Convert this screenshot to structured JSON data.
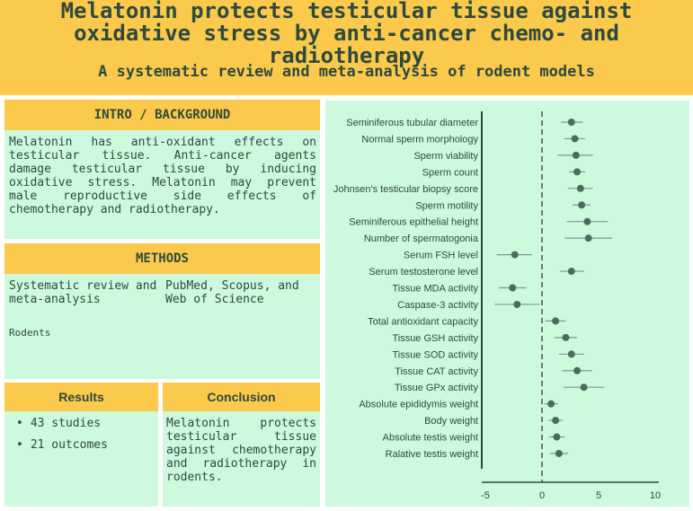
{
  "header": {
    "title": "Melatonin protects testicular tissue against oxidative stress by anti-cancer chemo- and radiotherapy",
    "subtitle": "A systematic review and meta-analysis of rodent models"
  },
  "intro": {
    "heading": "INTRO / BACKGROUND",
    "text": "Melatonin has anti-oxidant effects on testicular tissue. Anti-cancer agents damage testicular tissue by inducing oxidative stress. Melatonin may prevent male reproductive side effects of chemotherapy and radiotherapy."
  },
  "methods": {
    "heading": "METHODS",
    "design": "Systematic review and meta-analysis",
    "databases": "PubMed, Scopus, and Web of Science",
    "population": "Rodents"
  },
  "results": {
    "heading": "Results",
    "items": [
      "43 studies",
      "21 outcomes"
    ]
  },
  "conclusion": {
    "heading": "Conclusion",
    "text": "Melatonin protects testicular tissue against chemotherapy and radiotherapy in rodents."
  },
  "colors": {
    "accent": "#fbc94b",
    "panel": "#cdf9dd",
    "text": "#2e4a3e",
    "marker": "#4e6b60"
  },
  "chart_data": {
    "type": "scatter",
    "subtype": "forest-plot",
    "xlim": [
      -5,
      10
    ],
    "xticks": [
      -5,
      0,
      5,
      10
    ],
    "reference_line": 0,
    "grid": false,
    "outcomes": [
      {
        "label": "Seminiferous tubular diameter",
        "estimate": 2.6,
        "ci": [
          1.7,
          3.6
        ]
      },
      {
        "label": "Normal sperm morphology",
        "estimate": 2.9,
        "ci": [
          2.0,
          3.8
        ]
      },
      {
        "label": "Sperm viability",
        "estimate": 3.0,
        "ci": [
          1.4,
          4.5
        ]
      },
      {
        "label": "Sperm count",
        "estimate": 3.1,
        "ci": [
          2.4,
          3.8
        ]
      },
      {
        "label": "Johnsen's testicular biopsy score",
        "estimate": 3.4,
        "ci": [
          2.3,
          4.5
        ]
      },
      {
        "label": "Sperm motility",
        "estimate": 3.5,
        "ci": [
          2.7,
          4.3
        ]
      },
      {
        "label": "Seminiferous epithelial height",
        "estimate": 4.0,
        "ci": [
          2.2,
          5.8
        ]
      },
      {
        "label": "Number of spermatogonia",
        "estimate": 4.1,
        "ci": [
          2.0,
          6.2
        ]
      },
      {
        "label": "Serum FSH level",
        "estimate": -2.4,
        "ci": [
          -4.0,
          -0.9
        ]
      },
      {
        "label": "Serum testosterone level",
        "estimate": 2.6,
        "ci": [
          1.6,
          3.7
        ]
      },
      {
        "label": "Tissue MDA activity",
        "estimate": -2.6,
        "ci": [
          -3.8,
          -1.4
        ]
      },
      {
        "label": "Caspase-3 activity",
        "estimate": -2.2,
        "ci": [
          -4.2,
          -0.2
        ]
      },
      {
        "label": "Total antioxidant capacity",
        "estimate": 1.2,
        "ci": [
          0.3,
          2.1
        ]
      },
      {
        "label": "Tissue GSH activity",
        "estimate": 2.1,
        "ci": [
          1.1,
          3.1
        ]
      },
      {
        "label": "Tissue SOD activity",
        "estimate": 2.6,
        "ci": [
          1.5,
          3.7
        ]
      },
      {
        "label": "Tissue CAT activity",
        "estimate": 3.1,
        "ci": [
          1.8,
          4.4
        ]
      },
      {
        "label": "Tissue GPx activity",
        "estimate": 3.7,
        "ci": [
          1.9,
          5.5
        ]
      },
      {
        "label": "Absolute epididymis weight",
        "estimate": 0.8,
        "ci": [
          0.2,
          1.4
        ]
      },
      {
        "label": "Body weight",
        "estimate": 1.2,
        "ci": [
          0.6,
          1.8
        ]
      },
      {
        "label": "Absolute testis weight",
        "estimate": 1.3,
        "ci": [
          0.6,
          2.0
        ]
      },
      {
        "label": "Ralative testis weight",
        "estimate": 1.5,
        "ci": [
          0.7,
          2.3
        ]
      }
    ]
  }
}
